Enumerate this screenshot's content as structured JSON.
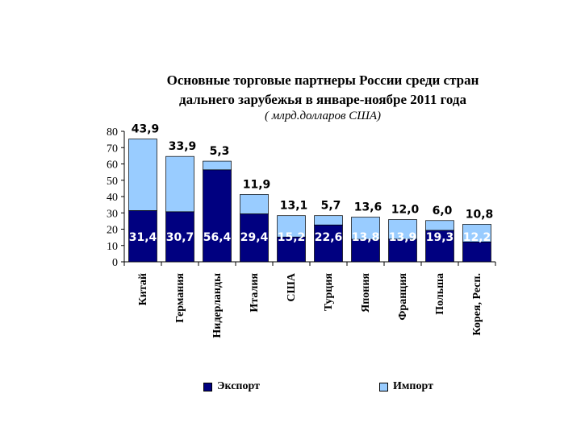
{
  "chart_data": {
    "type": "bar",
    "stacked": true,
    "title_line1": "Основные торговые партнеры России среди стран",
    "title_line2": "дальнего зарубежья в январе-ноябре 2011 года",
    "subtitle": "( млрд.долларов США)",
    "categories": [
      "Китай",
      "Германия",
      "Нидерланды",
      "Италия",
      "США",
      "Турция",
      "Япония",
      "Франция",
      "Польша",
      "Корея, Респ."
    ],
    "series": [
      {
        "name": "Экспорт",
        "values": [
          31.4,
          30.7,
          56.4,
          29.4,
          15.2,
          22.6,
          13.8,
          13.9,
          19.3,
          12.2
        ],
        "labels": [
          "31,4",
          "30,7",
          "56,4",
          "29,4",
          "15,2",
          "22,6",
          "13,8",
          "13,9",
          "19,3",
          "12,2"
        ]
      },
      {
        "name": "Импорт",
        "values": [
          43.9,
          33.9,
          5.3,
          11.9,
          13.1,
          5.7,
          13.6,
          12.0,
          6.0,
          10.8
        ],
        "labels": [
          "43,9",
          "33,9",
          "5,3",
          "11,9",
          "13,1",
          "5,7",
          "13,6",
          "12,0",
          "6,0",
          "10,8"
        ]
      }
    ],
    "y_ticks": [
      "0",
      "10",
      "20",
      "30",
      "40",
      "50",
      "60",
      "70",
      "80"
    ],
    "ylim": [
      0,
      80
    ],
    "legend_position": "bottom"
  },
  "colors": {
    "export": "#000080",
    "import": "#99CCFF",
    "axis": "#000000",
    "export_label": "#ffffff",
    "import_label": "#000000"
  }
}
